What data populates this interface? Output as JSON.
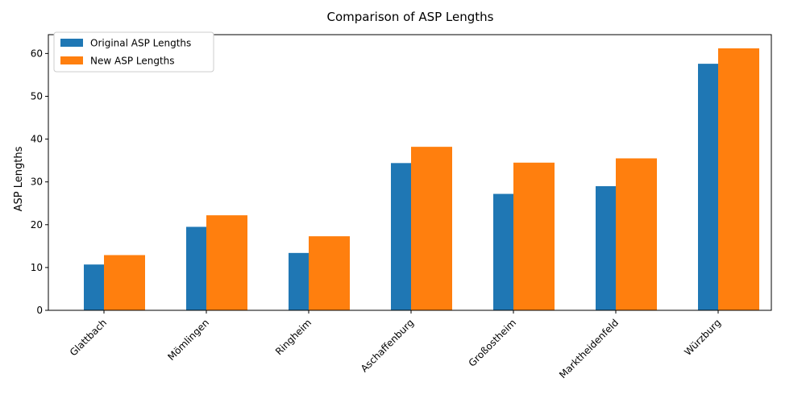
{
  "chart_data": {
    "type": "bar",
    "title": "Comparison of ASP Lengths",
    "xlabel": "",
    "ylabel": "ASP Lengths",
    "ylim": [
      0,
      64.4
    ],
    "yticks": [
      0,
      10,
      20,
      30,
      40,
      50,
      60
    ],
    "categories": [
      "Glattbach",
      "Mömlingen",
      "Ringheim",
      "Aschaffenburg",
      "Großostheim",
      "Marktheidenfeld",
      "Würzburg"
    ],
    "series": [
      {
        "name": "Original ASP Lengths",
        "color": "#1f77b4",
        "values": [
          10.7,
          19.5,
          13.4,
          34.4,
          27.2,
          29.0,
          57.6
        ]
      },
      {
        "name": "New ASP Lengths",
        "color": "#ff7f0e",
        "values": [
          12.9,
          22.2,
          17.3,
          38.2,
          34.5,
          35.5,
          61.2
        ]
      }
    ],
    "legend": "top-left",
    "grid": false
  }
}
